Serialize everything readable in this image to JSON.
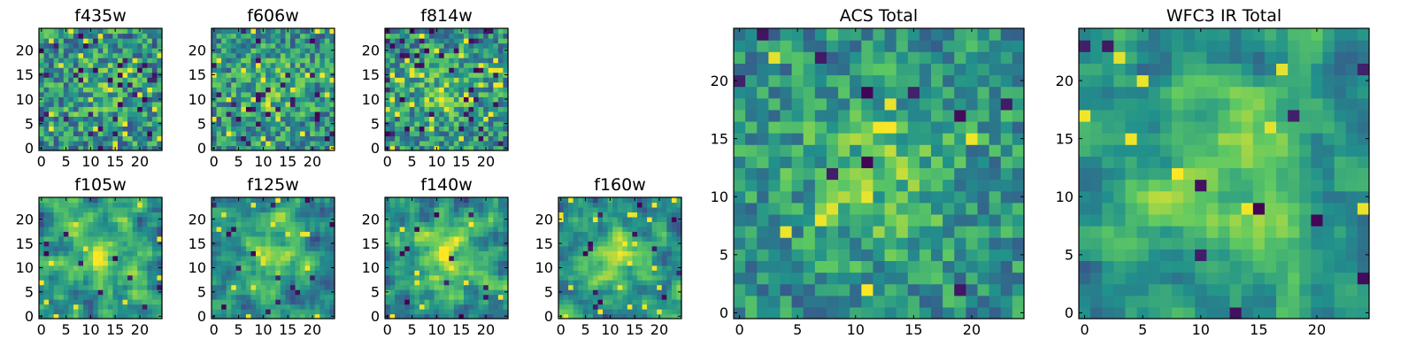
{
  "figure": {
    "colormap": [
      "#440154",
      "#3b528b",
      "#21918c",
      "#5ec962",
      "#fde725"
    ],
    "frame_color": "#000000"
  },
  "chart_data": [
    {
      "type": "heatmap",
      "title": "f435w",
      "grid_size": 25,
      "xticks": [
        0,
        5,
        10,
        15,
        20
      ],
      "yticks": [
        0,
        5,
        10,
        15,
        20
      ],
      "seed": 11,
      "smooth": 0,
      "peak": 0.15,
      "noise": 0.26,
      "dark": 0.05,
      "bright": 0.05
    },
    {
      "type": "heatmap",
      "title": "f606w",
      "grid_size": 25,
      "xticks": [
        0,
        5,
        10,
        15,
        20
      ],
      "yticks": [
        0,
        5,
        10,
        15,
        20
      ],
      "seed": 23,
      "smooth": 0,
      "peak": 0.18,
      "noise": 0.24,
      "dark": 0.04,
      "bright": 0.04
    },
    {
      "type": "heatmap",
      "title": "f814w",
      "grid_size": 25,
      "xticks": [
        0,
        5,
        10,
        15,
        20
      ],
      "yticks": [
        0,
        5,
        10,
        15,
        20
      ],
      "seed": 37,
      "smooth": 0,
      "peak": 0.2,
      "noise": 0.24,
      "dark": 0.05,
      "bright": 0.05
    },
    {
      "type": "heatmap",
      "title": "f105w",
      "grid_size": 25,
      "xticks": [
        0,
        5,
        10,
        15,
        20
      ],
      "yticks": [
        0,
        5,
        10,
        15,
        20
      ],
      "seed": 41,
      "smooth": 1,
      "peak": 0.32,
      "noise": 0.3,
      "dark": 0.02,
      "bright": 0.02
    },
    {
      "type": "heatmap",
      "title": "f125w",
      "grid_size": 25,
      "xticks": [
        0,
        5,
        10,
        15,
        20
      ],
      "yticks": [
        0,
        5,
        10,
        15,
        20
      ],
      "seed": 53,
      "smooth": 1,
      "peak": 0.3,
      "noise": 0.3,
      "dark": 0.02,
      "bright": 0.03
    },
    {
      "type": "heatmap",
      "title": "f140w",
      "grid_size": 25,
      "xticks": [
        0,
        5,
        10,
        15,
        20
      ],
      "yticks": [
        0,
        5,
        10,
        15,
        20
      ],
      "seed": 67,
      "smooth": 1,
      "peak": 0.32,
      "noise": 0.3,
      "dark": 0.02,
      "bright": 0.02
    },
    {
      "type": "heatmap",
      "title": "f160w",
      "grid_size": 25,
      "xticks": [
        0,
        5,
        10,
        15,
        20
      ],
      "yticks": [
        0,
        5,
        10,
        15,
        20
      ],
      "seed": 79,
      "smooth": 1,
      "peak": 0.3,
      "noise": 0.3,
      "dark": 0.02,
      "bright": 0.03
    },
    {
      "type": "heatmap",
      "title": "ACS Total",
      "grid_size": 25,
      "xticks": [
        0,
        5,
        10,
        15,
        20
      ],
      "yticks": [
        0,
        5,
        10,
        15,
        20
      ],
      "seed": 89,
      "smooth": 0,
      "peak": 0.22,
      "noise": 0.2,
      "dark": 0.025,
      "bright": 0.03
    },
    {
      "type": "heatmap",
      "title": "WFC3 IR Total",
      "grid_size": 25,
      "xticks": [
        0,
        5,
        10,
        15,
        20
      ],
      "yticks": [
        0,
        5,
        10,
        15,
        20
      ],
      "seed": 97,
      "smooth": 1,
      "peak": 0.36,
      "noise": 0.22,
      "dark": 0.015,
      "bright": 0.01
    }
  ]
}
